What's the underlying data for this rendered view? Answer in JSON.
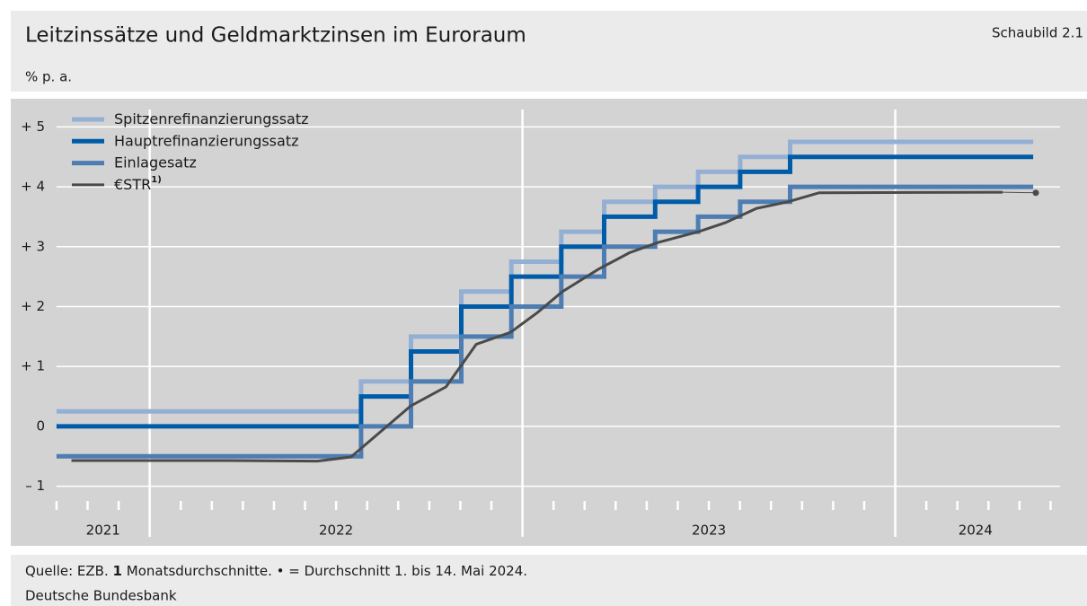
{
  "chart_data": {
    "type": "step",
    "title": "Leitzinssätze und Geldmarktzinsen im Euroraum",
    "figure_label": "Schaubild 2.1",
    "unit": "% p. a.",
    "xlim": [
      2021.75,
      2024.43
    ],
    "xticks": [
      2021,
      2022,
      2023,
      2024
    ],
    "ylim": [
      -1.5,
      5.5
    ],
    "yticks": [
      {
        "value": 5,
        "label": "+ 5"
      },
      {
        "value": 4,
        "label": "+ 4"
      },
      {
        "value": 3,
        "label": "+ 3"
      },
      {
        "value": 2,
        "label": "+ 2"
      },
      {
        "value": 1,
        "label": "+ 1"
      },
      0,
      {
        "value": -1,
        "label": "– 1"
      }
    ],
    "grid": true,
    "legend": "upper left",
    "series": [
      {
        "name": "Spitzenrefinanzierungssatz",
        "color": "#94afd4",
        "x": [
          2021.75,
          2022.567,
          2022.567,
          2022.701,
          2022.701,
          2022.836,
          2022.836,
          2022.97,
          2022.97,
          2023.104,
          2023.104,
          2023.219,
          2023.219,
          2023.356,
          2023.356,
          2023.471,
          2023.471,
          2023.584,
          2023.584,
          2023.718,
          2023.718,
          2024.37
        ],
        "values": [
          0.25,
          0.25,
          0.75,
          0.75,
          1.5,
          1.5,
          2.25,
          2.25,
          2.75,
          2.75,
          3.25,
          3.25,
          3.75,
          3.75,
          4.0,
          4.0,
          4.25,
          4.25,
          4.5,
          4.5,
          4.75,
          4.75
        ]
      },
      {
        "name": "Hauptrefinanzierungssatz",
        "color": "#005ca8",
        "x": [
          2021.75,
          2022.567,
          2022.567,
          2022.701,
          2022.701,
          2022.836,
          2022.836,
          2022.97,
          2022.97,
          2023.104,
          2023.104,
          2023.219,
          2023.219,
          2023.356,
          2023.356,
          2023.471,
          2023.471,
          2023.584,
          2023.584,
          2023.718,
          2023.718,
          2024.37
        ],
        "values": [
          0,
          0,
          0.5,
          0.5,
          1.25,
          1.25,
          2.0,
          2.0,
          2.5,
          2.5,
          3.0,
          3.0,
          3.5,
          3.5,
          3.75,
          3.75,
          4.0,
          4.0,
          4.25,
          4.25,
          4.5,
          4.5
        ]
      },
      {
        "name": "Einlagesatz",
        "color": "#4d7db3",
        "x": [
          2021.75,
          2022.567,
          2022.567,
          2022.701,
          2022.701,
          2022.836,
          2022.836,
          2022.97,
          2022.97,
          2023.104,
          2023.104,
          2023.219,
          2023.219,
          2023.356,
          2023.356,
          2023.471,
          2023.471,
          2023.584,
          2023.584,
          2023.718,
          2023.718,
          2024.37
        ],
        "values": [
          -0.5,
          -0.5,
          0,
          0,
          0.75,
          0.75,
          1.5,
          1.5,
          2.0,
          2.0,
          2.5,
          2.5,
          3.0,
          3.0,
          3.25,
          3.25,
          3.5,
          3.5,
          3.75,
          3.75,
          4.0,
          4.0
        ]
      },
      {
        "name": "€STR",
        "name_note": "1)",
        "color": "#4a4a4a",
        "x": [
          2021.79,
          2022.0,
          2022.2,
          2022.45,
          2022.54,
          2022.7,
          2022.795,
          2022.876,
          2022.968,
          2023.04,
          2023.107,
          2023.203,
          2023.287,
          2023.364,
          2023.472,
          2023.544,
          2023.628,
          2023.712,
          2023.796,
          2024.288
        ],
        "values": [
          -0.57,
          -0.57,
          -0.57,
          -0.58,
          -0.51,
          0.34,
          0.66,
          1.37,
          1.57,
          1.9,
          2.25,
          2.62,
          2.9,
          3.07,
          3.25,
          3.4,
          3.64,
          3.75,
          3.9,
          3.91
        ],
        "point": {
          "x": 2024.377,
          "value": 3.9
        }
      }
    ],
    "source": "Quelle: EZB.",
    "footnote_number": "1",
    "footnote_text": "Monatsdurchschnitte. • = Durchschnitt 1. bis 14. Mai 2024.",
    "publisher": "Deutsche Bundesbank"
  }
}
